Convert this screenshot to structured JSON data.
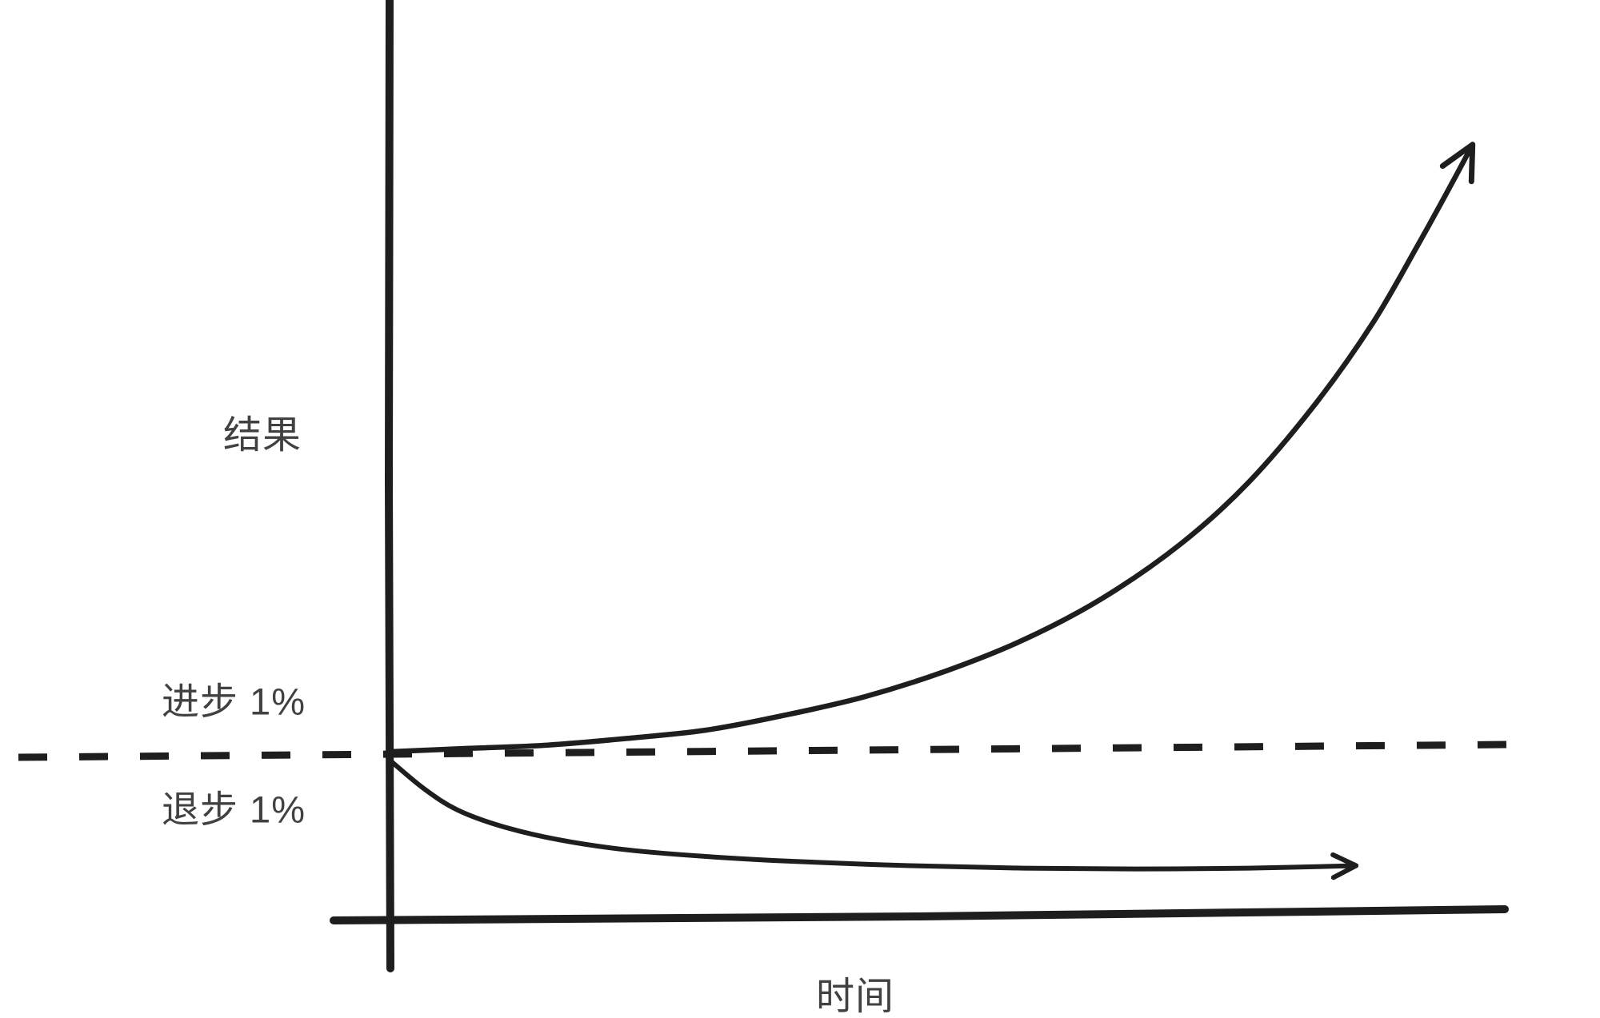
{
  "figure": {
    "background": "#ffffff",
    "ink_color": "#1e1e1e",
    "label_color": "#414141"
  },
  "labels": {
    "y_axis": "结果",
    "x_axis": "时间",
    "above_baseline": "进步 1%",
    "below_baseline": "退步 1%"
  },
  "chart_data": {
    "type": "line",
    "title": "",
    "xlabel": "时间",
    "ylabel": "结果",
    "x_range": [
      0,
      10
    ],
    "y_range": [
      0,
      5
    ],
    "grid": false,
    "legend_position": "none",
    "style": "hand-drawn",
    "baseline": {
      "value": 1.0,
      "line_style": "dashed",
      "label_above": "进步 1%",
      "label_below": "退步 1%"
    },
    "series": [
      {
        "name": "进步 1%",
        "shape": "exponential-growth",
        "arrow_end": true,
        "points": [
          [
            0,
            1.0
          ],
          [
            0.7,
            1.02
          ],
          [
            1.4,
            1.04
          ],
          [
            2.1,
            1.08
          ],
          [
            2.8,
            1.13
          ],
          [
            3.5,
            1.22
          ],
          [
            4.2,
            1.33
          ],
          [
            4.9,
            1.48
          ],
          [
            5.6,
            1.67
          ],
          [
            6.3,
            1.92
          ],
          [
            7.0,
            2.25
          ],
          [
            7.6,
            2.62
          ],
          [
            8.2,
            3.1
          ],
          [
            8.7,
            3.58
          ],
          [
            9.1,
            4.05
          ],
          [
            9.4,
            4.42
          ],
          [
            9.58,
            4.65
          ]
        ]
      },
      {
        "name": "退步 1%",
        "shape": "exponential-decay",
        "arrow_end": true,
        "points": [
          [
            0,
            0.95
          ],
          [
            0.3,
            0.78
          ],
          [
            0.6,
            0.65
          ],
          [
            1.0,
            0.55
          ],
          [
            1.5,
            0.47
          ],
          [
            2.1,
            0.41
          ],
          [
            2.8,
            0.37
          ],
          [
            3.6,
            0.34
          ],
          [
            4.6,
            0.315
          ],
          [
            5.6,
            0.3
          ],
          [
            6.6,
            0.295
          ],
          [
            7.6,
            0.3
          ],
          [
            8.55,
            0.315
          ]
        ]
      }
    ]
  }
}
